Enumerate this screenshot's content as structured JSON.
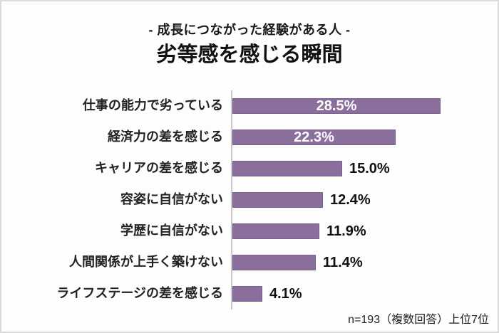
{
  "page": {
    "subtitle": "- 成長につながった経験がある人 -",
    "title": "劣等感を感じる瞬間",
    "footnote": "n=193（複数回答）上位7位"
  },
  "colors": {
    "bar_fill": "#8a6f9c",
    "bar_border": "#7b6191",
    "axis_line": "#c9c9c9",
    "inside_value_label": "#ffffff",
    "outside_value_label": "#111111"
  },
  "chart_data": {
    "type": "bar",
    "orientation": "horizontal",
    "title": "劣等感を感じる瞬間",
    "subtitle": "- 成長につながった経験がある人 -",
    "categories": [
      "仕事の能力で劣っている",
      "経済力の差を感じる",
      "キャリアの差を感じる",
      "容姿に自信がない",
      "学歴に自信がない",
      "人間関係が上手く築けない",
      "ライフステージの差を感じる"
    ],
    "values": [
      28.5,
      22.3,
      15.0,
      12.4,
      11.9,
      11.4,
      4.1
    ],
    "value_labels": [
      "28.5%",
      "22.3%",
      "15.0%",
      "12.4%",
      "11.9%",
      "11.4%",
      "4.1%"
    ],
    "unit": "%",
    "xlim": [
      0,
      35
    ],
    "grid": false,
    "legend": false,
    "annotation": "n=193（複数回答）上位7位"
  }
}
